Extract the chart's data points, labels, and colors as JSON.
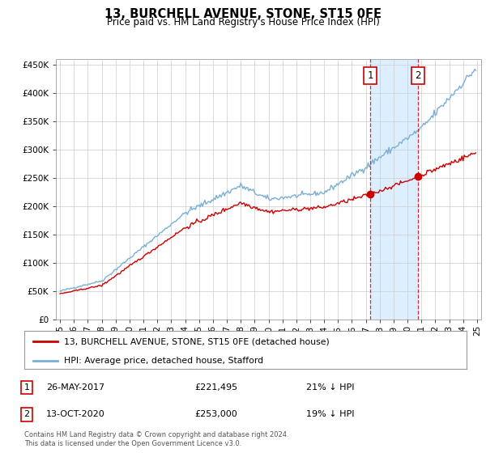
{
  "title": "13, BURCHELL AVENUE, STONE, ST15 0FE",
  "subtitle": "Price paid vs. HM Land Registry's House Price Index (HPI)",
  "ylim": [
    0,
    460000
  ],
  "yticks": [
    0,
    50000,
    100000,
    150000,
    200000,
    250000,
    300000,
    350000,
    400000,
    450000
  ],
  "sale1_price": 221495,
  "sale2_price": 253000,
  "legend_line1": "13, BURCHELL AVENUE, STONE, ST15 0FE (detached house)",
  "legend_line2": "HPI: Average price, detached house, Stafford",
  "footer": "Contains HM Land Registry data © Crown copyright and database right 2024.\nThis data is licensed under the Open Government Licence v3.0.",
  "red_color": "#cc0000",
  "blue_color": "#7aafd4",
  "shade_color": "#ddeeff",
  "dashed_color": "#cc0000",
  "grid_color": "#cccccc",
  "sale1_table": "26-MAY-2017",
  "sale1_amt": "£221,495",
  "sale1_pct": "21% ↓ HPI",
  "sale2_table": "13-OCT-2020",
  "sale2_amt": "£253,000",
  "sale2_pct": "19% ↓ HPI"
}
